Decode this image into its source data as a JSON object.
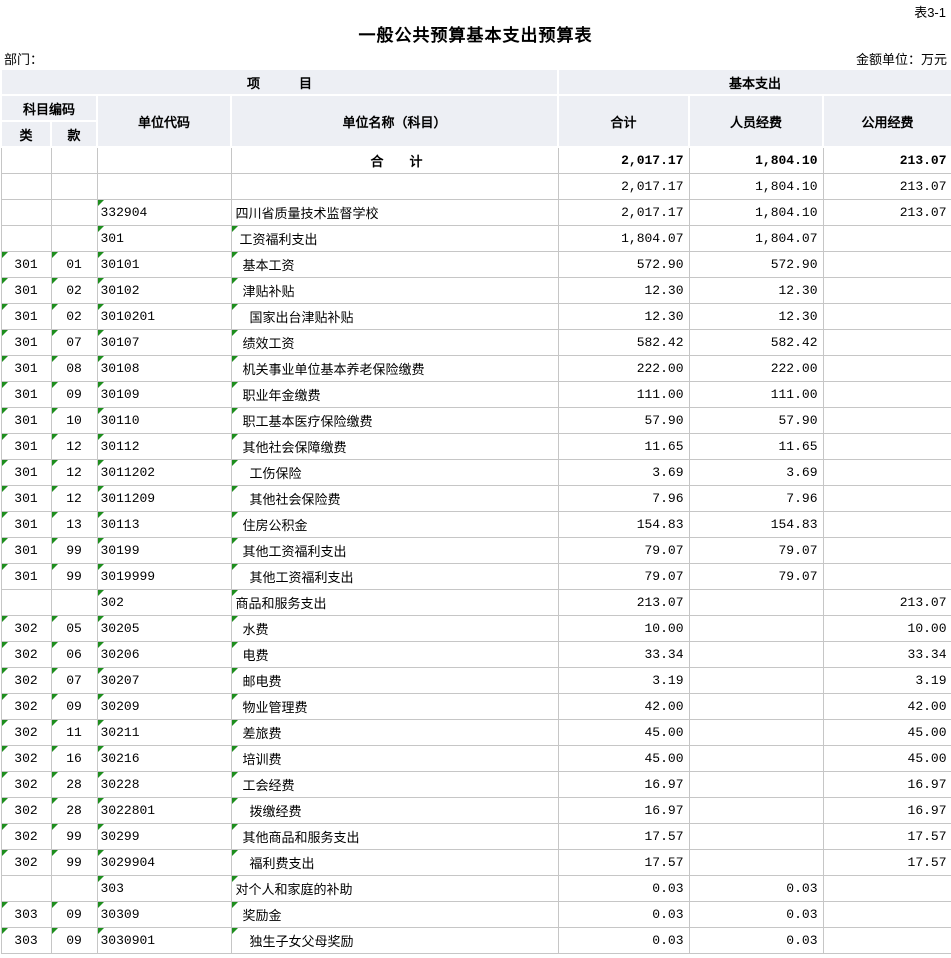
{
  "page": {
    "table_tag": "表3-1",
    "title": "一般公共预算基本支出预算表",
    "department_label": "部门：",
    "amount_unit_label": "金额单位：万元"
  },
  "colors": {
    "grid_line": "#c6c6c6",
    "header_background": "#edeff4",
    "error_indicator_green": "#1e8e1e",
    "text": "#000000"
  },
  "table": {
    "header": {
      "project_group": "项　　　目",
      "basic_expenditure_group": "基本支出",
      "subject_code": "科目编码",
      "class_col": "类",
      "item_col": "款",
      "unit_code": "单位代码",
      "unit_name": "单位名称（科目）",
      "total": "合计",
      "personnel_funds": "人员经费",
      "public_funds": "公用经费"
    },
    "rows": [
      {
        "cls": "",
        "item": "",
        "code": "",
        "name": "合　　计",
        "lv": 0,
        "total": "2,017.17",
        "per": "1,804.10",
        "pub": "213.07",
        "bold": 1,
        "center": 1,
        "m": [
          0,
          0,
          0,
          0
        ]
      },
      {
        "cls": "",
        "item": "",
        "code": "",
        "name": "",
        "lv": 0,
        "total": "2,017.17",
        "per": "1,804.10",
        "pub": "213.07",
        "m": [
          0,
          0,
          0,
          0
        ]
      },
      {
        "cls": "",
        "item": "",
        "code": "332904",
        "name": "四川省质量技术监督学校",
        "lv": 0,
        "total": "2,017.17",
        "per": "1,804.10",
        "pub": "213.07",
        "m": [
          0,
          0,
          1,
          0
        ]
      },
      {
        "cls": "",
        "item": "",
        "code": "301",
        "name": "工资福利支出",
        "lv": 1,
        "total": "1,804.07",
        "per": "1,804.07",
        "pub": "",
        "m": [
          0,
          0,
          1,
          1
        ]
      },
      {
        "cls": "301",
        "item": "01",
        "code": "30101",
        "name": "基本工资",
        "lv": 2,
        "total": "572.90",
        "per": "572.90",
        "pub": "",
        "m": [
          1,
          1,
          1,
          1
        ]
      },
      {
        "cls": "301",
        "item": "02",
        "code": "30102",
        "name": "津贴补贴",
        "lv": 2,
        "total": "12.30",
        "per": "12.30",
        "pub": "",
        "m": [
          1,
          1,
          1,
          1
        ]
      },
      {
        "cls": "301",
        "item": "02",
        "code": "3010201",
        "name": "国家出台津贴补贴",
        "lv": 3,
        "total": "12.30",
        "per": "12.30",
        "pub": "",
        "m": [
          1,
          1,
          1,
          1
        ]
      },
      {
        "cls": "301",
        "item": "07",
        "code": "30107",
        "name": "绩效工资",
        "lv": 2,
        "total": "582.42",
        "per": "582.42",
        "pub": "",
        "m": [
          1,
          1,
          1,
          1
        ]
      },
      {
        "cls": "301",
        "item": "08",
        "code": "30108",
        "name": "机关事业单位基本养老保险缴费",
        "lv": 2,
        "total": "222.00",
        "per": "222.00",
        "pub": "",
        "m": [
          1,
          1,
          1,
          1
        ]
      },
      {
        "cls": "301",
        "item": "09",
        "code": "30109",
        "name": "职业年金缴费",
        "lv": 2,
        "total": "111.00",
        "per": "111.00",
        "pub": "",
        "m": [
          1,
          1,
          1,
          1
        ]
      },
      {
        "cls": "301",
        "item": "10",
        "code": "30110",
        "name": "职工基本医疗保险缴费",
        "lv": 2,
        "total": "57.90",
        "per": "57.90",
        "pub": "",
        "m": [
          1,
          1,
          1,
          1
        ]
      },
      {
        "cls": "301",
        "item": "12",
        "code": "30112",
        "name": "其他社会保障缴费",
        "lv": 2,
        "total": "11.65",
        "per": "11.65",
        "pub": "",
        "m": [
          1,
          1,
          1,
          1
        ]
      },
      {
        "cls": "301",
        "item": "12",
        "code": "3011202",
        "name": "工伤保险",
        "lv": 3,
        "total": "3.69",
        "per": "3.69",
        "pub": "",
        "m": [
          1,
          1,
          1,
          1
        ]
      },
      {
        "cls": "301",
        "item": "12",
        "code": "3011209",
        "name": "其他社会保险费",
        "lv": 3,
        "total": "7.96",
        "per": "7.96",
        "pub": "",
        "m": [
          1,
          1,
          1,
          1
        ]
      },
      {
        "cls": "301",
        "item": "13",
        "code": "30113",
        "name": "住房公积金",
        "lv": 2,
        "total": "154.83",
        "per": "154.83",
        "pub": "",
        "m": [
          1,
          1,
          1,
          1
        ]
      },
      {
        "cls": "301",
        "item": "99",
        "code": "30199",
        "name": "其他工资福利支出",
        "lv": 2,
        "total": "79.07",
        "per": "79.07",
        "pub": "",
        "m": [
          1,
          1,
          1,
          1
        ]
      },
      {
        "cls": "301",
        "item": "99",
        "code": "3019999",
        "name": "其他工资福利支出",
        "lv": 3,
        "total": "79.07",
        "per": "79.07",
        "pub": "",
        "m": [
          1,
          1,
          1,
          1
        ]
      },
      {
        "cls": "",
        "item": "",
        "code": "302",
        "name": "商品和服务支出",
        "lv": 0,
        "total": "213.07",
        "per": "",
        "pub": "213.07",
        "m": [
          0,
          0,
          1,
          1
        ]
      },
      {
        "cls": "302",
        "item": "05",
        "code": "30205",
        "name": "水费",
        "lv": 2,
        "total": "10.00",
        "per": "",
        "pub": "10.00",
        "m": [
          1,
          1,
          1,
          1
        ]
      },
      {
        "cls": "302",
        "item": "06",
        "code": "30206",
        "name": "电费",
        "lv": 2,
        "total": "33.34",
        "per": "",
        "pub": "33.34",
        "m": [
          1,
          1,
          1,
          1
        ]
      },
      {
        "cls": "302",
        "item": "07",
        "code": "30207",
        "name": "邮电费",
        "lv": 2,
        "total": "3.19",
        "per": "",
        "pub": "3.19",
        "m": [
          1,
          1,
          1,
          1
        ]
      },
      {
        "cls": "302",
        "item": "09",
        "code": "30209",
        "name": "物业管理费",
        "lv": 2,
        "total": "42.00",
        "per": "",
        "pub": "42.00",
        "m": [
          1,
          1,
          1,
          1
        ]
      },
      {
        "cls": "302",
        "item": "11",
        "code": "30211",
        "name": "差旅费",
        "lv": 2,
        "total": "45.00",
        "per": "",
        "pub": "45.00",
        "m": [
          1,
          1,
          1,
          1
        ]
      },
      {
        "cls": "302",
        "item": "16",
        "code": "30216",
        "name": "培训费",
        "lv": 2,
        "total": "45.00",
        "per": "",
        "pub": "45.00",
        "m": [
          1,
          1,
          1,
          1
        ]
      },
      {
        "cls": "302",
        "item": "28",
        "code": "30228",
        "name": "工会经费",
        "lv": 2,
        "total": "16.97",
        "per": "",
        "pub": "16.97",
        "m": [
          1,
          1,
          1,
          1
        ]
      },
      {
        "cls": "302",
        "item": "28",
        "code": "3022801",
        "name": "拨缴经费",
        "lv": 3,
        "total": "16.97",
        "per": "",
        "pub": "16.97",
        "m": [
          1,
          1,
          1,
          1
        ]
      },
      {
        "cls": "302",
        "item": "99",
        "code": "30299",
        "name": "其他商品和服务支出",
        "lv": 2,
        "total": "17.57",
        "per": "",
        "pub": "17.57",
        "m": [
          1,
          1,
          1,
          1
        ]
      },
      {
        "cls": "302",
        "item": "99",
        "code": "3029904",
        "name": "福利费支出",
        "lv": 3,
        "total": "17.57",
        "per": "",
        "pub": "17.57",
        "m": [
          1,
          1,
          1,
          1
        ]
      },
      {
        "cls": "",
        "item": "",
        "code": "303",
        "name": "对个人和家庭的补助",
        "lv": 0,
        "total": "0.03",
        "per": "0.03",
        "pub": "",
        "m": [
          0,
          0,
          1,
          1
        ]
      },
      {
        "cls": "303",
        "item": "09",
        "code": "30309",
        "name": "奖励金",
        "lv": 2,
        "total": "0.03",
        "per": "0.03",
        "pub": "",
        "m": [
          1,
          1,
          1,
          1
        ]
      },
      {
        "cls": "303",
        "item": "09",
        "code": "3030901",
        "name": "独生子女父母奖励",
        "lv": 3,
        "total": "0.03",
        "per": "0.03",
        "pub": "",
        "m": [
          1,
          1,
          1,
          1
        ]
      }
    ]
  }
}
